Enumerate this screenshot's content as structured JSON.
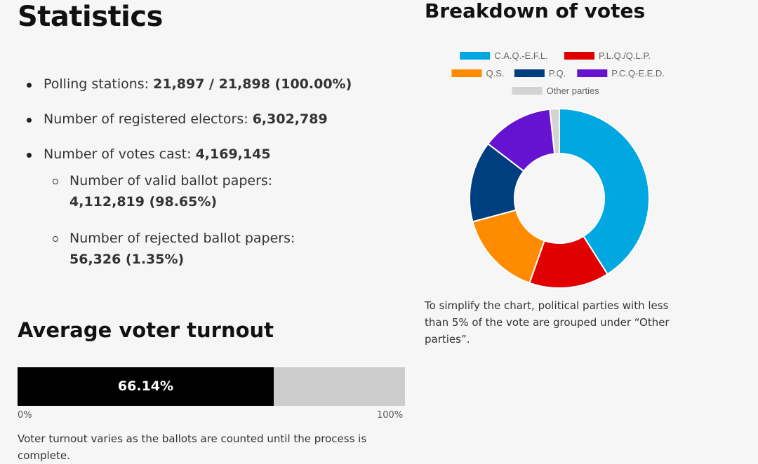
{
  "page": {
    "title": "Statistics"
  },
  "stats": {
    "polling": {
      "label": "Polling stations:",
      "value": "21,897 / 21,898 (100.00%)"
    },
    "electors": {
      "label": "Number of registered electors:",
      "value": "6,302,789"
    },
    "votes_cast": {
      "label": "Number of votes cast:",
      "value": "4,169,145"
    },
    "valid": {
      "label": "Number of valid ballot papers:",
      "value": "4,112,819 (98.65%)"
    },
    "rejected": {
      "label": "Number of rejected ballot papers:",
      "value": "56,326 (1.35%)"
    }
  },
  "turnout": {
    "title": "Average voter turnout",
    "value_label": "66.14%",
    "percent": 66.14,
    "min_label": "0%",
    "max_label": "100%",
    "note": "Voter turnout varies as the ballots are counted until the process is complete."
  },
  "breakdown": {
    "note": "To simplify the chart, political parties with less than 5% of the vote are grouped under “Other parties”."
  },
  "chart_data": {
    "type": "pie",
    "title": "Breakdown of votes",
    "donut": true,
    "legend_position": "top",
    "series": [
      {
        "name": "C.A.Q.-E.F.L.",
        "value": 41.0,
        "color": "#00a7e1"
      },
      {
        "name": "P.L.Q./Q.L.P.",
        "value": 14.4,
        "color": "#e00000"
      },
      {
        "name": "Q.S.",
        "value": 15.4,
        "color": "#ff8c00"
      },
      {
        "name": "P.Q.",
        "value": 14.6,
        "color": "#003f7f"
      },
      {
        "name": "P.C.Q-E.E.D.",
        "value": 12.9,
        "color": "#6512d1"
      },
      {
        "name": "Other parties",
        "value": 1.7,
        "color": "#d3d3d3"
      }
    ]
  }
}
